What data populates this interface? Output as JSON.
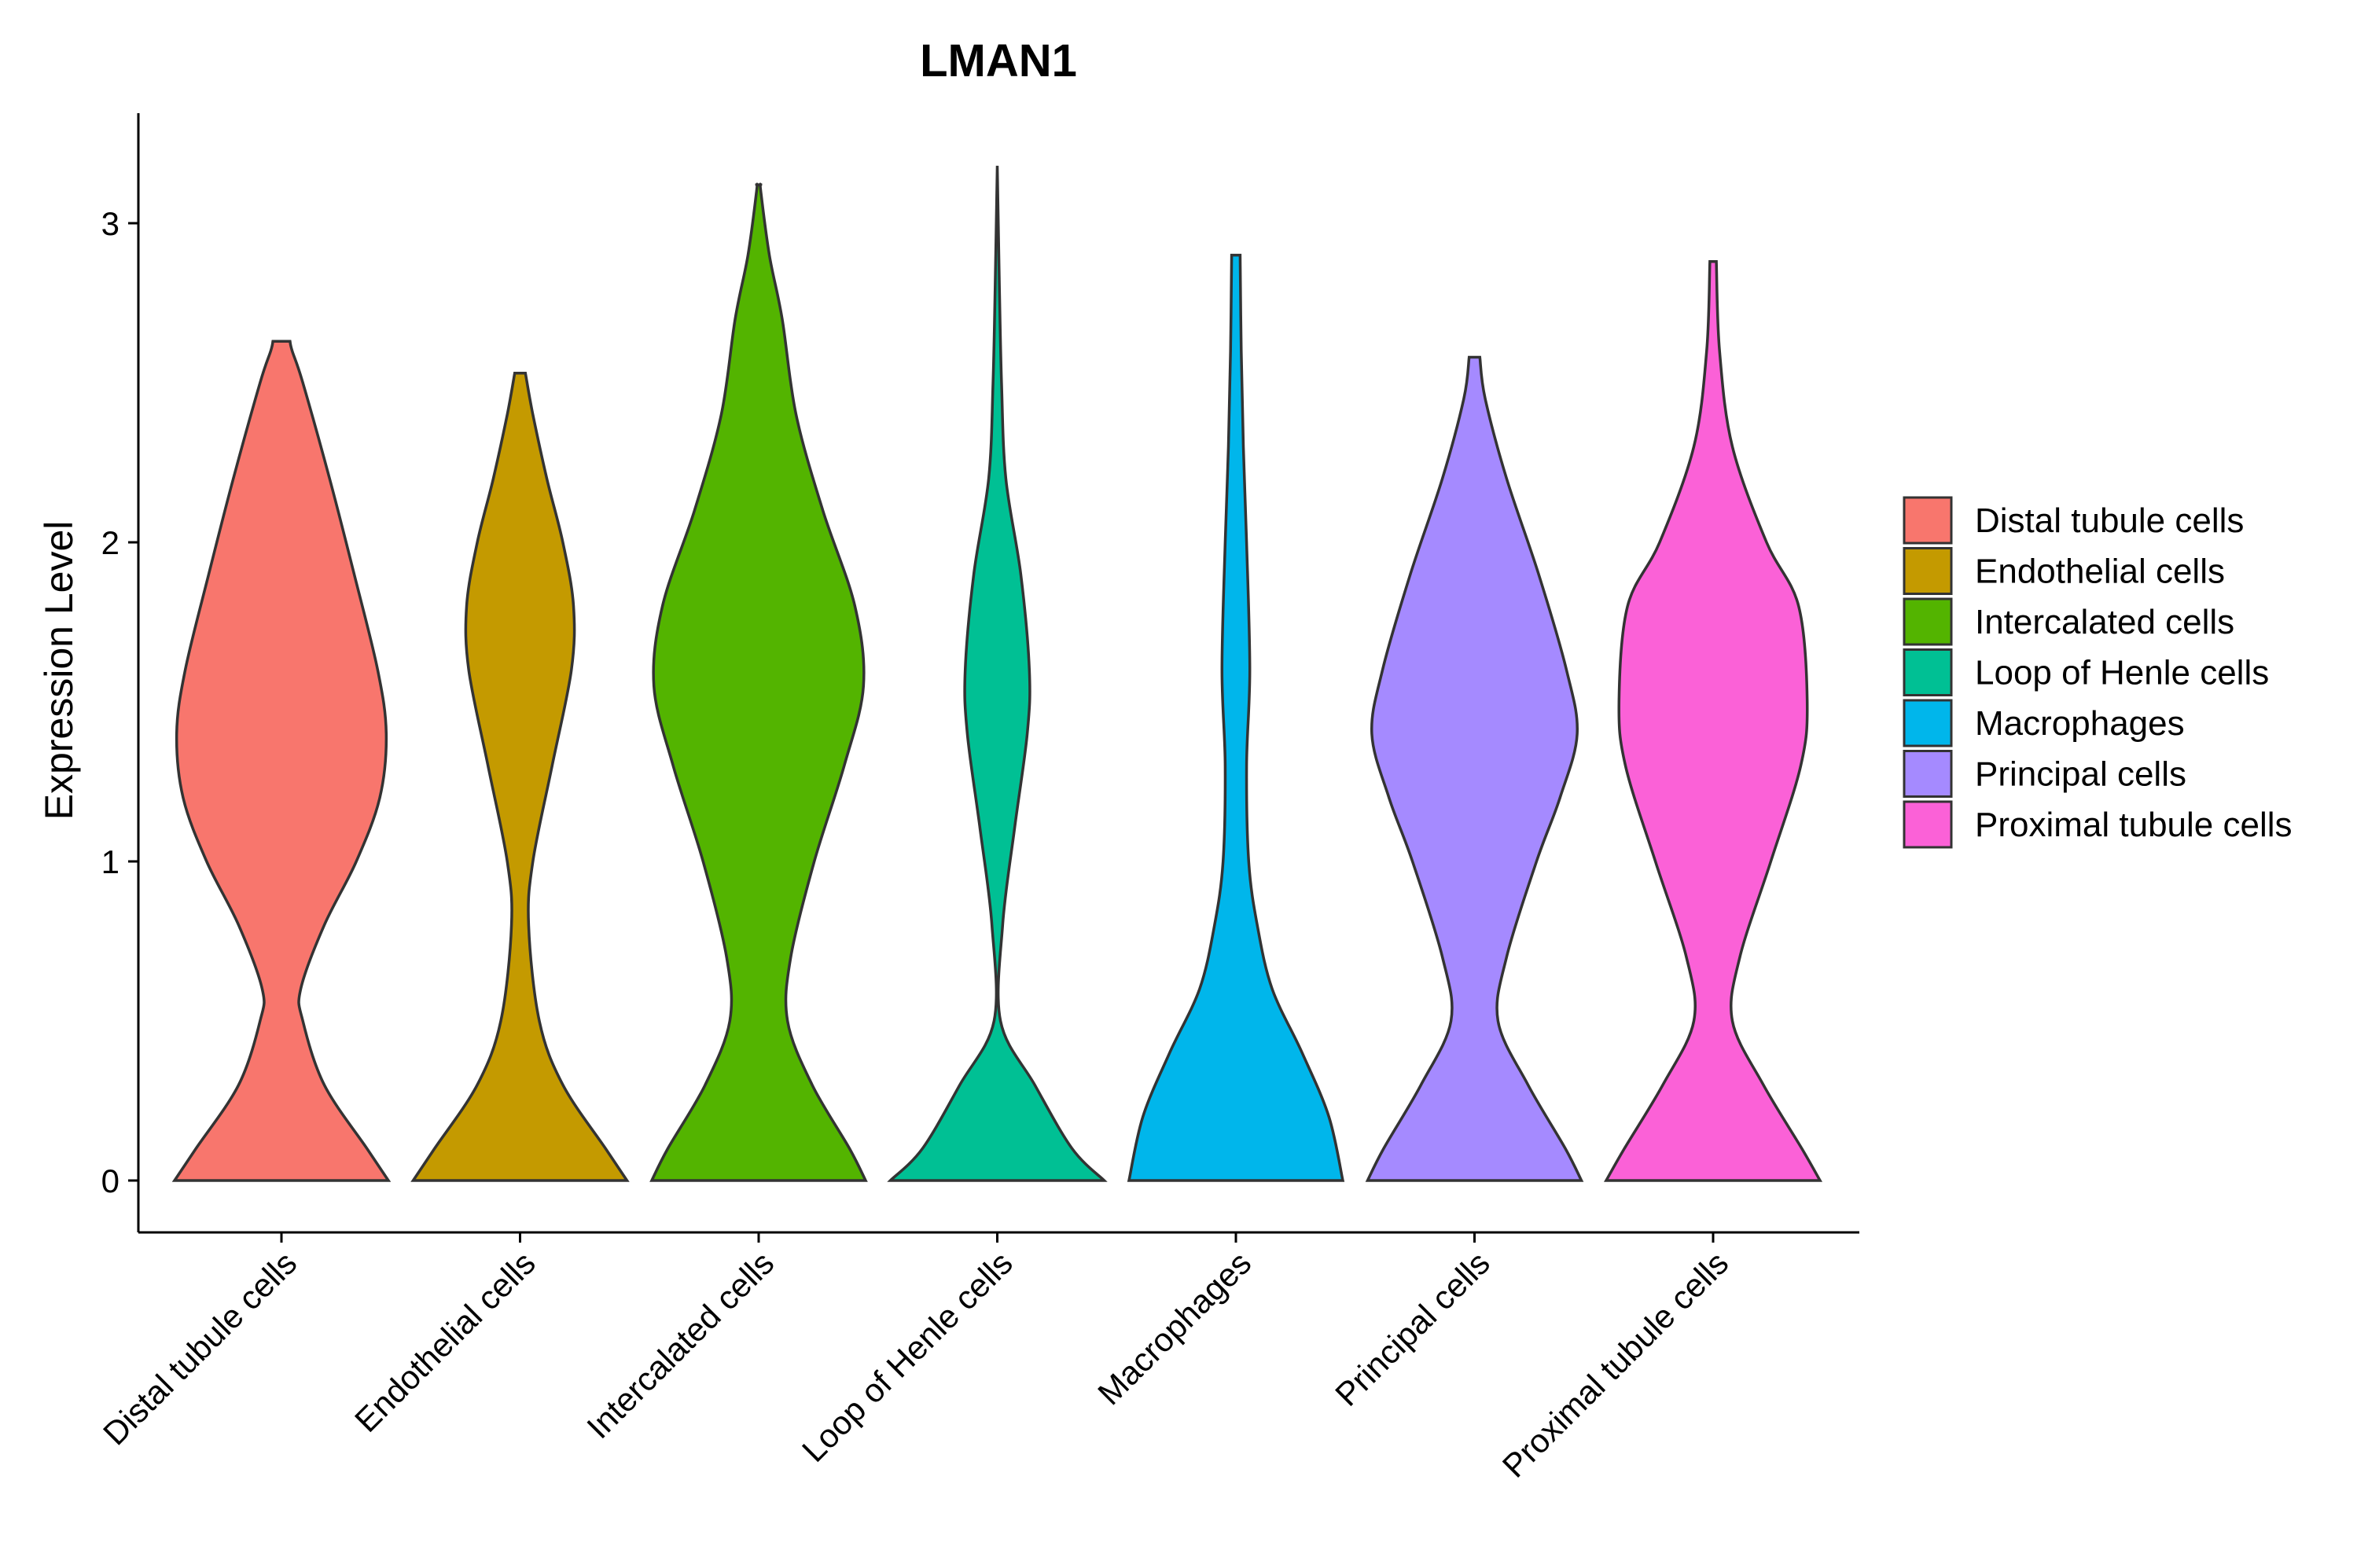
{
  "chart_data": {
    "type": "violin",
    "title": "LMAN1",
    "xlabel": "",
    "ylabel": "Expression Level",
    "ylim": [
      -0.15,
      3.35
    ],
    "yticks": [
      0,
      1,
      2,
      3
    ],
    "legend_position": "right",
    "grid": false,
    "categories": [
      "Distal tubule cells",
      "Endothelial cells",
      "Intercalated cells",
      "Loop of Henle cells",
      "Macrophages",
      "Principal cells",
      "Proximal tubule cells"
    ],
    "series": [
      {
        "category": "Distal tubule cells",
        "color": "#F8766D",
        "max": 2.63,
        "profile": [
          [
            0,
            1.0
          ],
          [
            0.1,
            0.8
          ],
          [
            0.3,
            0.4
          ],
          [
            0.5,
            0.2
          ],
          [
            0.6,
            0.18
          ],
          [
            0.8,
            0.4
          ],
          [
            1.0,
            0.7
          ],
          [
            1.2,
            0.92
          ],
          [
            1.4,
            0.98
          ],
          [
            1.6,
            0.9
          ],
          [
            1.9,
            0.68
          ],
          [
            2.2,
            0.45
          ],
          [
            2.5,
            0.2
          ],
          [
            2.6,
            0.1
          ],
          [
            2.63,
            0.08
          ]
        ]
      },
      {
        "category": "Endothelial cells",
        "color": "#C49A00",
        "max": 2.53,
        "profile": [
          [
            0,
            1.0
          ],
          [
            0.1,
            0.8
          ],
          [
            0.3,
            0.4
          ],
          [
            0.5,
            0.18
          ],
          [
            0.8,
            0.08
          ],
          [
            1.0,
            0.12
          ],
          [
            1.3,
            0.3
          ],
          [
            1.6,
            0.48
          ],
          [
            1.8,
            0.5
          ],
          [
            2.0,
            0.4
          ],
          [
            2.2,
            0.25
          ],
          [
            2.4,
            0.12
          ],
          [
            2.53,
            0.05
          ]
        ]
      },
      {
        "category": "Intercalated cells",
        "color": "#53B400",
        "max": 3.12,
        "profile": [
          [
            0,
            1.0
          ],
          [
            0.1,
            0.85
          ],
          [
            0.3,
            0.5
          ],
          [
            0.5,
            0.27
          ],
          [
            0.7,
            0.3
          ],
          [
            1.0,
            0.52
          ],
          [
            1.3,
            0.8
          ],
          [
            1.55,
            0.98
          ],
          [
            1.8,
            0.9
          ],
          [
            2.1,
            0.6
          ],
          [
            2.4,
            0.35
          ],
          [
            2.7,
            0.22
          ],
          [
            2.9,
            0.1
          ],
          [
            3.1,
            0.02
          ],
          [
            3.12,
            0.02
          ]
        ]
      },
      {
        "category": "Loop of Henle cells",
        "color": "#00C094",
        "max": 3.18,
        "profile": [
          [
            0,
            1.0
          ],
          [
            0.1,
            0.7
          ],
          [
            0.3,
            0.35
          ],
          [
            0.5,
            0.03
          ],
          [
            0.8,
            0.05
          ],
          [
            1.1,
            0.16
          ],
          [
            1.4,
            0.28
          ],
          [
            1.6,
            0.3
          ],
          [
            1.9,
            0.22
          ],
          [
            2.2,
            0.08
          ],
          [
            2.5,
            0.04
          ],
          [
            2.8,
            0.02
          ],
          [
            3.18,
            0.0
          ]
        ]
      },
      {
        "category": "Macrophages",
        "color": "#00B6EB",
        "max": 2.9,
        "profile": [
          [
            0,
            1.0
          ],
          [
            0.2,
            0.87
          ],
          [
            0.4,
            0.62
          ],
          [
            0.6,
            0.34
          ],
          [
            0.8,
            0.2
          ],
          [
            1.0,
            0.12
          ],
          [
            1.3,
            0.1
          ],
          [
            1.6,
            0.13
          ],
          [
            2.0,
            0.1
          ],
          [
            2.3,
            0.07
          ],
          [
            2.6,
            0.05
          ],
          [
            2.9,
            0.04
          ]
        ]
      },
      {
        "category": "Principal cells",
        "color": "#A58AFF",
        "max": 2.58,
        "profile": [
          [
            0,
            1.0
          ],
          [
            0.1,
            0.85
          ],
          [
            0.3,
            0.5
          ],
          [
            0.5,
            0.22
          ],
          [
            0.7,
            0.3
          ],
          [
            1.0,
            0.58
          ],
          [
            1.2,
            0.8
          ],
          [
            1.4,
            0.96
          ],
          [
            1.6,
            0.86
          ],
          [
            1.9,
            0.6
          ],
          [
            2.2,
            0.3
          ],
          [
            2.45,
            0.1
          ],
          [
            2.58,
            0.05
          ]
        ]
      },
      {
        "category": "Proximal tubule cells",
        "color": "#FB61D7",
        "max": 2.88,
        "profile": [
          [
            0,
            1.0
          ],
          [
            0.1,
            0.83
          ],
          [
            0.3,
            0.47
          ],
          [
            0.5,
            0.18
          ],
          [
            0.7,
            0.25
          ],
          [
            1.0,
            0.54
          ],
          [
            1.3,
            0.82
          ],
          [
            1.5,
            0.88
          ],
          [
            1.8,
            0.8
          ],
          [
            2.0,
            0.5
          ],
          [
            2.3,
            0.18
          ],
          [
            2.6,
            0.06
          ],
          [
            2.88,
            0.03
          ]
        ]
      }
    ]
  }
}
